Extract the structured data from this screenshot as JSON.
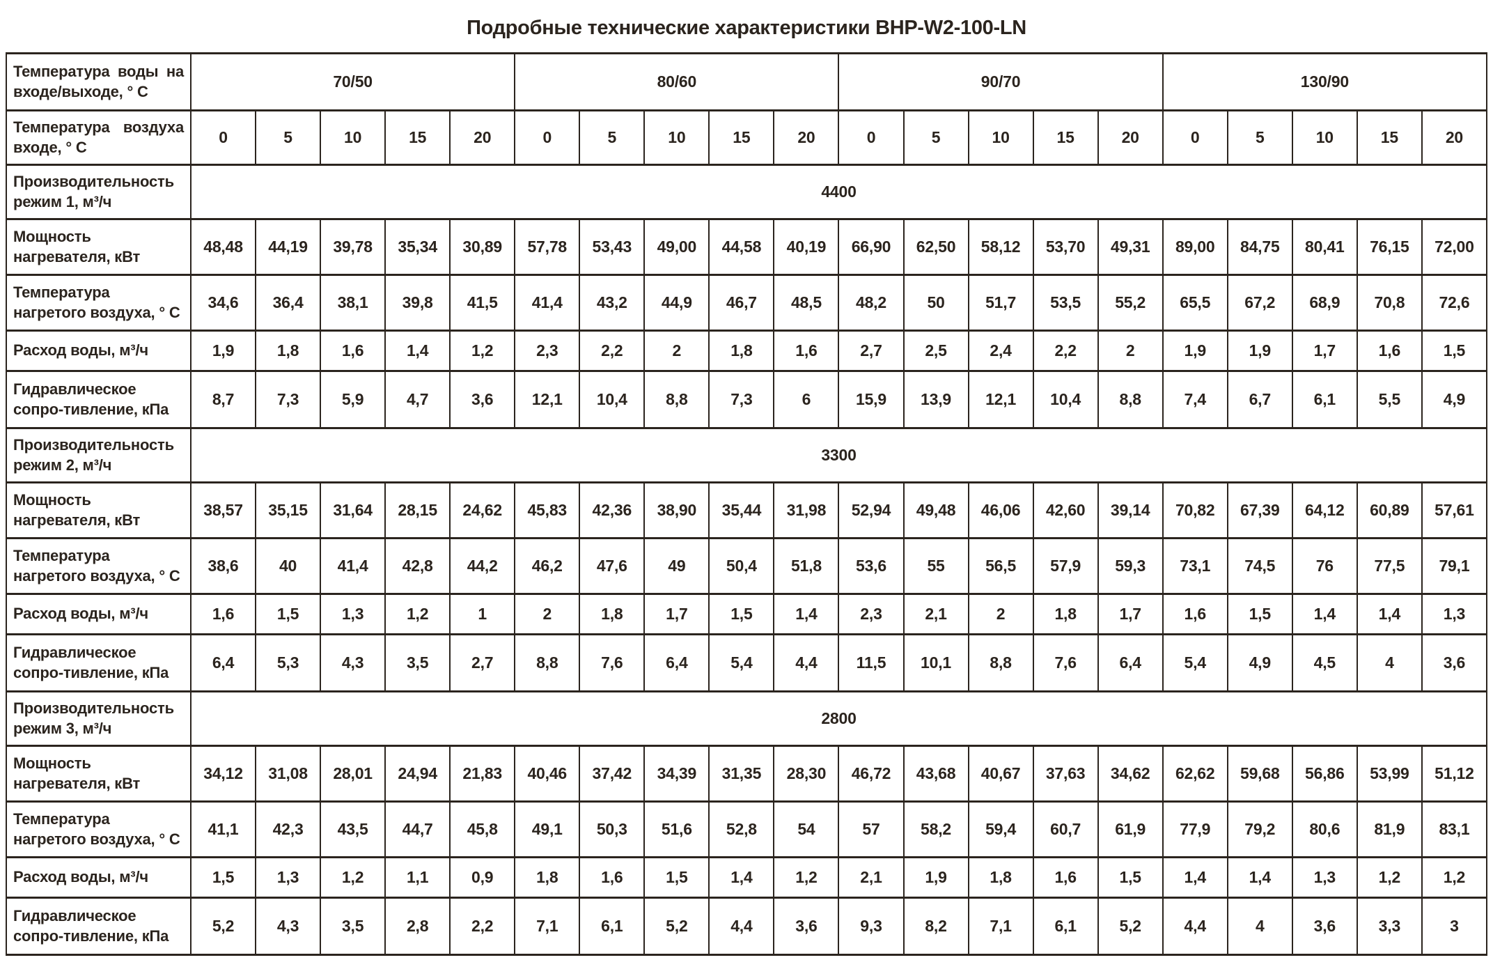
{
  "title": "Подробные технические характеристики BHP-W2-100-LN",
  "table": {
    "header": {
      "water_temp_label": "Температура воды на входе/выходе, ° С",
      "air_temp_label": "Температура воздуха входе, ° С",
      "water_temp_groups": [
        "70/50",
        "80/60",
        "90/70",
        "130/90"
      ],
      "air_temps": [
        "0",
        "5",
        "10",
        "15",
        "20"
      ]
    },
    "modes": [
      {
        "capacity_label": "Производительность режим 1, м³/ч",
        "capacity_value": "4400",
        "rows": [
          {
            "key": "heater_power",
            "label": "Мощность нагревателя, кВт",
            "values": [
              "48,48",
              "44,19",
              "39,78",
              "35,34",
              "30,89",
              "57,78",
              "53,43",
              "49,00",
              "44,58",
              "40,19",
              "66,90",
              "62,50",
              "58,12",
              "53,70",
              "49,31",
              "89,00",
              "84,75",
              "80,41",
              "76,15",
              "72,00"
            ]
          },
          {
            "key": "heated_air_temp",
            "label": "Температура нагретого воздуха, ° С",
            "values": [
              "34,6",
              "36,4",
              "38,1",
              "39,8",
              "41,5",
              "41,4",
              "43,2",
              "44,9",
              "46,7",
              "48,5",
              "48,2",
              "50",
              "51,7",
              "53,5",
              "55,2",
              "65,5",
              "67,2",
              "68,9",
              "70,8",
              "72,6"
            ]
          },
          {
            "key": "water_flow",
            "label": "Расход воды, м³/ч",
            "values": [
              "1,9",
              "1,8",
              "1,6",
              "1,4",
              "1,2",
              "2,3",
              "2,2",
              "2",
              "1,8",
              "1,6",
              "2,7",
              "2,5",
              "2,4",
              "2,2",
              "2",
              "1,9",
              "1,9",
              "1,7",
              "1,6",
              "1,5"
            ]
          },
          {
            "key": "hydraulic_resistance",
            "label": "Гидравлическое сопро-тивление, кПа",
            "values": [
              "8,7",
              "7,3",
              "5,9",
              "4,7",
              "3,6",
              "12,1",
              "10,4",
              "8,8",
              "7,3",
              "6",
              "15,9",
              "13,9",
              "12,1",
              "10,4",
              "8,8",
              "7,4",
              "6,7",
              "6,1",
              "5,5",
              "4,9"
            ]
          }
        ]
      },
      {
        "capacity_label": "Производительность режим 2, м³/ч",
        "capacity_value": "3300",
        "rows": [
          {
            "key": "heater_power",
            "label": "Мощность нагревателя, кВт",
            "values": [
              "38,57",
              "35,15",
              "31,64",
              "28,15",
              "24,62",
              "45,83",
              "42,36",
              "38,90",
              "35,44",
              "31,98",
              "52,94",
              "49,48",
              "46,06",
              "42,60",
              "39,14",
              "70,82",
              "67,39",
              "64,12",
              "60,89",
              "57,61"
            ]
          },
          {
            "key": "heated_air_temp",
            "label": "Температура нагретого воздуха, ° С",
            "values": [
              "38,6",
              "40",
              "41,4",
              "42,8",
              "44,2",
              "46,2",
              "47,6",
              "49",
              "50,4",
              "51,8",
              "53,6",
              "55",
              "56,5",
              "57,9",
              "59,3",
              "73,1",
              "74,5",
              "76",
              "77,5",
              "79,1"
            ]
          },
          {
            "key": "water_flow",
            "label": "Расход воды, м³/ч",
            "values": [
              "1,6",
              "1,5",
              "1,3",
              "1,2",
              "1",
              "2",
              "1,8",
              "1,7",
              "1,5",
              "1,4",
              "2,3",
              "2,1",
              "2",
              "1,8",
              "1,7",
              "1,6",
              "1,5",
              "1,4",
              "1,4",
              "1,3"
            ]
          },
          {
            "key": "hydraulic_resistance",
            "label": "Гидравлическое сопро-тивление, кПа",
            "values": [
              "6,4",
              "5,3",
              "4,3",
              "3,5",
              "2,7",
              "8,8",
              "7,6",
              "6,4",
              "5,4",
              "4,4",
              "11,5",
              "10,1",
              "8,8",
              "7,6",
              "6,4",
              "5,4",
              "4,9",
              "4,5",
              "4",
              "3,6"
            ]
          }
        ]
      },
      {
        "capacity_label": "Производительность режим 3, м³/ч",
        "capacity_value": "2800",
        "rows": [
          {
            "key": "heater_power",
            "label": "Мощность нагревателя, кВт",
            "values": [
              "34,12",
              "31,08",
              "28,01",
              "24,94",
              "21,83",
              "40,46",
              "37,42",
              "34,39",
              "31,35",
              "28,30",
              "46,72",
              "43,68",
              "40,67",
              "37,63",
              "34,62",
              "62,62",
              "59,68",
              "56,86",
              "53,99",
              "51,12"
            ]
          },
          {
            "key": "heated_air_temp",
            "label": "Температура нагретого воздуха, ° С",
            "values": [
              "41,1",
              "42,3",
              "43,5",
              "44,7",
              "45,8",
              "49,1",
              "50,3",
              "51,6",
              "52,8",
              "54",
              "57",
              "58,2",
              "59,4",
              "60,7",
              "61,9",
              "77,9",
              "79,2",
              "80,6",
              "81,9",
              "83,1"
            ]
          },
          {
            "key": "water_flow",
            "label": "Расход воды, м³/ч",
            "values": [
              "1,5",
              "1,3",
              "1,2",
              "1,1",
              "0,9",
              "1,8",
              "1,6",
              "1,5",
              "1,4",
              "1,2",
              "2,1",
              "1,9",
              "1,8",
              "1,6",
              "1,5",
              "1,4",
              "1,4",
              "1,3",
              "1,2",
              "1,2"
            ]
          },
          {
            "key": "hydraulic_resistance",
            "label": "Гидравлическое сопро-тивление, кПа",
            "values": [
              "5,2",
              "4,3",
              "3,5",
              "2,8",
              "2,2",
              "7,1",
              "6,1",
              "5,2",
              "4,4",
              "3,6",
              "9,3",
              "8,2",
              "7,1",
              "6,1",
              "5,2",
              "4,4",
              "4",
              "3,6",
              "3,3",
              "3"
            ]
          }
        ]
      }
    ]
  }
}
